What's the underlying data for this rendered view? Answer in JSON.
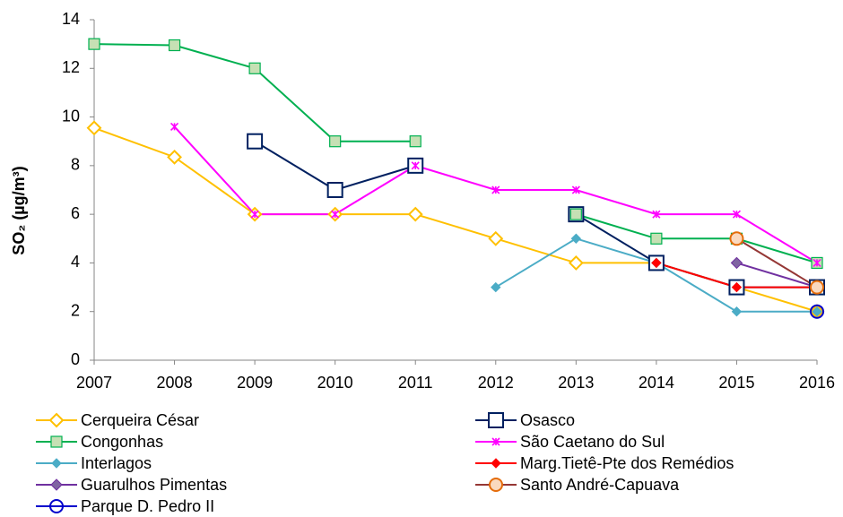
{
  "chart_data": {
    "type": "line",
    "y_label": "SO₂ (µg/m³)",
    "x": [
      2007,
      2008,
      2009,
      2010,
      2011,
      2012,
      2013,
      2014,
      2015,
      2016
    ],
    "xlim": [
      2007,
      2016
    ],
    "xticks": [
      2007,
      2008,
      2009,
      2010,
      2011,
      2012,
      2013,
      2014,
      2015,
      2016
    ],
    "ylim": [
      0,
      14
    ],
    "yticks": [
      0,
      2,
      4,
      6,
      8,
      10,
      12,
      14
    ],
    "grid": false,
    "series": [
      {
        "name": "Cerqueira César",
        "color": "#FFC000",
        "marker": "diamond",
        "marker_fill": "#ffffff",
        "values": [
          9.55,
          8.35,
          6,
          6,
          6,
          5,
          4,
          4,
          3,
          2
        ]
      },
      {
        "name": "Osasco",
        "color": "#002060",
        "marker": "square",
        "marker_fill": "#ffffff",
        "values": [
          null,
          null,
          9,
          7,
          8,
          null,
          6,
          4,
          3,
          3
        ]
      },
      {
        "name": "Congonhas",
        "color": "#00B050",
        "marker": "square-small",
        "marker_fill": "#C6E0B4",
        "values": [
          13,
          12.95,
          12,
          9,
          9,
          null,
          6,
          5,
          5,
          4
        ]
      },
      {
        "name": "São Caetano do Sul",
        "color": "#FF00FF",
        "marker": "asterisk",
        "marker_fill": "#FF00FF",
        "values": [
          null,
          9.6,
          6,
          6,
          8,
          7,
          7,
          6,
          6,
          4
        ]
      },
      {
        "name": "Interlagos",
        "color": "#4BACC6",
        "marker": "diamond-small",
        "marker_fill": "#4BACC6",
        "values": [
          null,
          null,
          null,
          null,
          null,
          3,
          5,
          4,
          2,
          2
        ]
      },
      {
        "name": "Marg.Tietê-Pte dos Remédios",
        "color": "#FF0000",
        "marker": "diamond-small",
        "marker_fill": "#FF0000",
        "values": [
          null,
          null,
          null,
          null,
          null,
          null,
          null,
          4,
          3,
          3
        ]
      },
      {
        "name": "Guarulhos Pimentas",
        "color": "#7030A0",
        "marker": "diamond-mid",
        "marker_fill": "#8064A2",
        "values": [
          null,
          null,
          null,
          null,
          null,
          null,
          null,
          null,
          4,
          3
        ]
      },
      {
        "name": "Santo André-Capuava",
        "color": "#953735",
        "marker": "circle",
        "marker_fill": "#FAD9BF",
        "marker_stroke": "#E46C0A",
        "values": [
          null,
          null,
          null,
          null,
          null,
          null,
          null,
          null,
          5,
          3
        ]
      },
      {
        "name": "Parque D. Pedro II",
        "color": "#0000CC",
        "marker": "circle",
        "marker_fill": "none",
        "marker_stroke": "#0000CC",
        "values": [
          null,
          null,
          null,
          null,
          null,
          null,
          null,
          null,
          null,
          2
        ]
      }
    ]
  }
}
